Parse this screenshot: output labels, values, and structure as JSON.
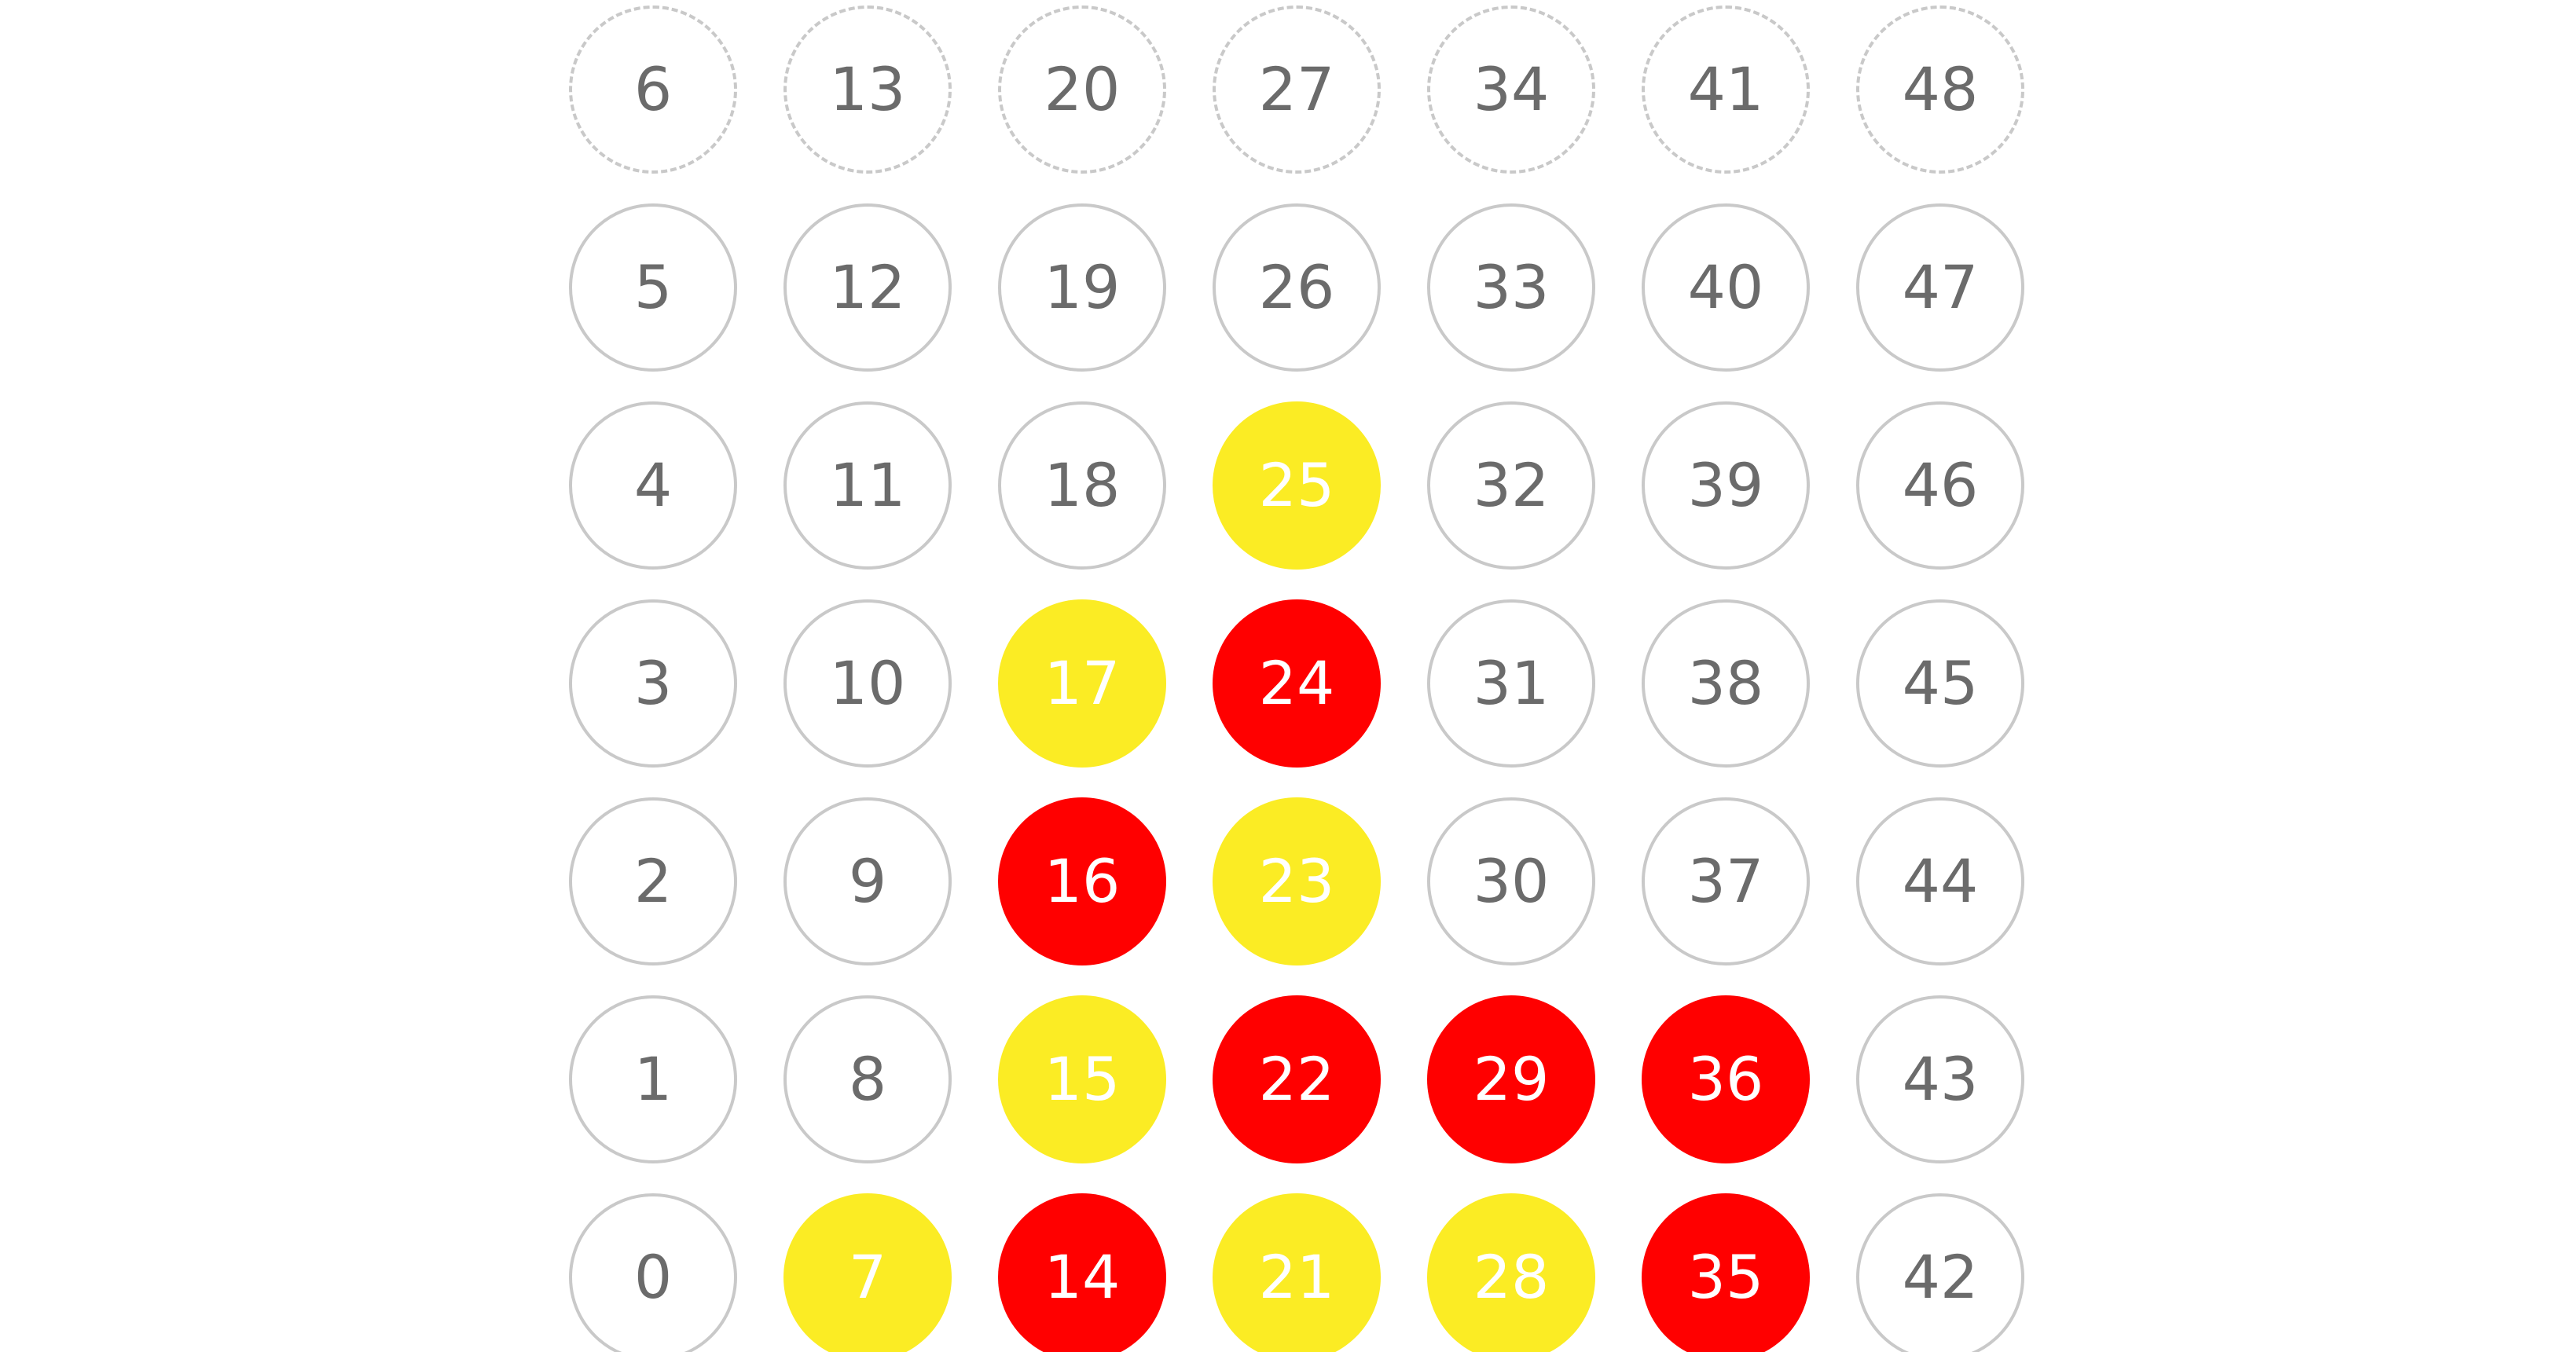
{
  "board": {
    "columns": 7,
    "rows": 7,
    "colors": {
      "yellow": "#fbec24",
      "red": "#ff0000",
      "empty_border": "#c9c9c9",
      "number_text": "#6b6b6b",
      "piece_text": "#ffffff"
    },
    "cells": [
      {
        "label": "0",
        "state": "empty"
      },
      {
        "label": "1",
        "state": "empty"
      },
      {
        "label": "2",
        "state": "empty"
      },
      {
        "label": "3",
        "state": "empty"
      },
      {
        "label": "4",
        "state": "empty"
      },
      {
        "label": "5",
        "state": "empty"
      },
      {
        "label": "6",
        "state": "top"
      },
      {
        "label": "7",
        "state": "yellow"
      },
      {
        "label": "8",
        "state": "empty"
      },
      {
        "label": "9",
        "state": "empty"
      },
      {
        "label": "10",
        "state": "empty"
      },
      {
        "label": "11",
        "state": "empty"
      },
      {
        "label": "12",
        "state": "empty"
      },
      {
        "label": "13",
        "state": "top"
      },
      {
        "label": "14",
        "state": "red"
      },
      {
        "label": "15",
        "state": "yellow"
      },
      {
        "label": "16",
        "state": "red"
      },
      {
        "label": "17",
        "state": "yellow"
      },
      {
        "label": "18",
        "state": "empty"
      },
      {
        "label": "19",
        "state": "empty"
      },
      {
        "label": "20",
        "state": "top"
      },
      {
        "label": "21",
        "state": "yellow"
      },
      {
        "label": "22",
        "state": "red"
      },
      {
        "label": "23",
        "state": "yellow"
      },
      {
        "label": "24",
        "state": "red"
      },
      {
        "label": "25",
        "state": "yellow"
      },
      {
        "label": "26",
        "state": "empty"
      },
      {
        "label": "27",
        "state": "top"
      },
      {
        "label": "28",
        "state": "yellow"
      },
      {
        "label": "29",
        "state": "red"
      },
      {
        "label": "30",
        "state": "empty"
      },
      {
        "label": "31",
        "state": "empty"
      },
      {
        "label": "32",
        "state": "empty"
      },
      {
        "label": "33",
        "state": "empty"
      },
      {
        "label": "34",
        "state": "top"
      },
      {
        "label": "35",
        "state": "red"
      },
      {
        "label": "36",
        "state": "red"
      },
      {
        "label": "37",
        "state": "empty"
      },
      {
        "label": "38",
        "state": "empty"
      },
      {
        "label": "39",
        "state": "empty"
      },
      {
        "label": "40",
        "state": "empty"
      },
      {
        "label": "41",
        "state": "top"
      },
      {
        "label": "42",
        "state": "empty"
      },
      {
        "label": "43",
        "state": "empty"
      },
      {
        "label": "44",
        "state": "empty"
      },
      {
        "label": "45",
        "state": "empty"
      },
      {
        "label": "46",
        "state": "empty"
      },
      {
        "label": "47",
        "state": "empty"
      },
      {
        "label": "48",
        "state": "top"
      }
    ]
  }
}
